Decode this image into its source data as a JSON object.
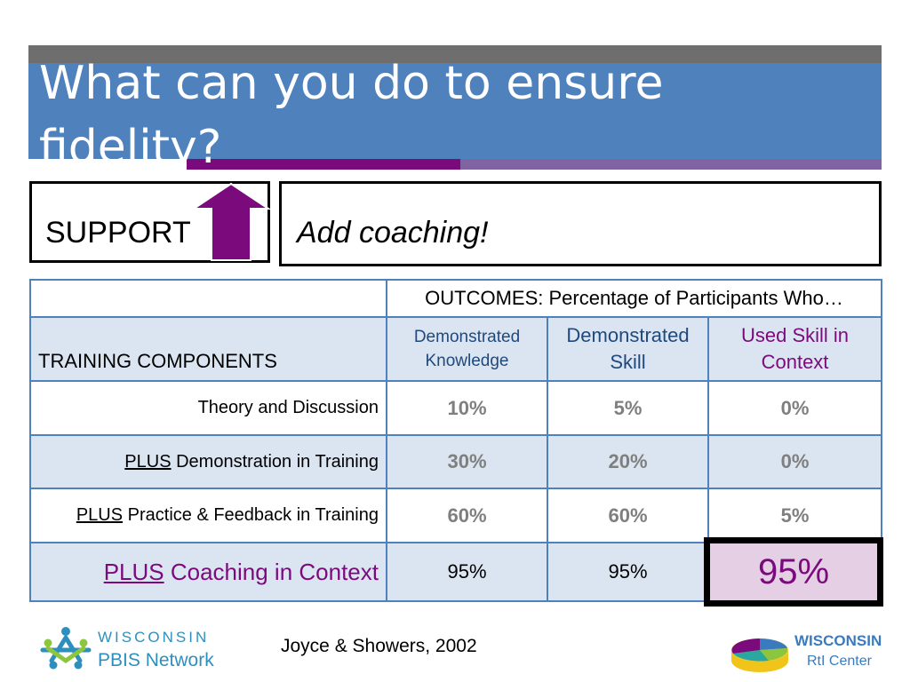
{
  "slide": {
    "title": "What can you do to ensure fidelity?",
    "support_label": "SUPPORT",
    "callout": "Add coaching!"
  },
  "table": {
    "outcomes_header": "OUTCOMES: Percentage of Participants Who…",
    "components_header": "TRAINING COMPONENTS",
    "columns": [
      "Demonstrated Knowledge",
      "Demonstrated Skill",
      "Used Skill in Context"
    ],
    "rows": [
      {
        "plus": "",
        "label": "Theory and Discussion",
        "values": [
          "10%",
          "5%",
          "0%"
        ]
      },
      {
        "plus": "PLUS",
        "label": " Demonstration in Training",
        "values": [
          "30%",
          "20%",
          "0%"
        ]
      },
      {
        "plus": "PLUS",
        "label": " Practice & Feedback in Training",
        "values": [
          "60%",
          "60%",
          "5%"
        ]
      },
      {
        "plus": "PLUS",
        "label": " Coaching in Context",
        "values": [
          "95%",
          "95%",
          "95%"
        ]
      }
    ]
  },
  "footer": {
    "citation": "Joyce & Showers, 2002",
    "left_logo": {
      "word": "WISCONSIN",
      "line2": "PBIS Network"
    },
    "right_logo": {
      "word": "WISCONSIN",
      "line2": "RtI Center"
    }
  },
  "colors": {
    "title_band": "#4f81bd",
    "accent_purple": "#7b0a7d",
    "row_shade": "#dbe5f1",
    "highlight_fill": "#e4cfe4"
  }
}
